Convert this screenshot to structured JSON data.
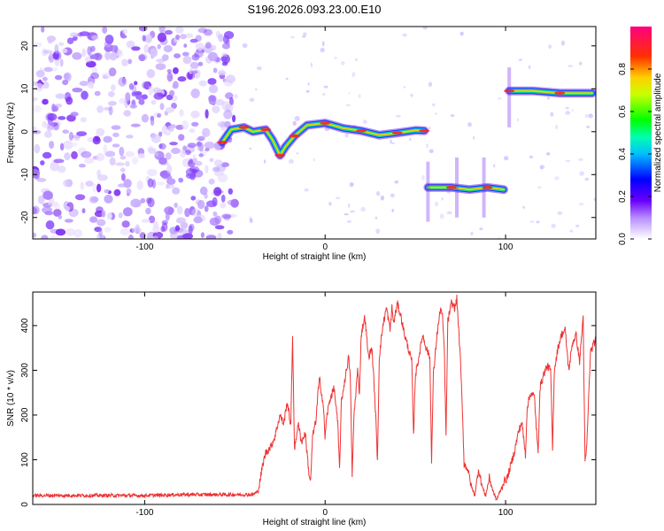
{
  "figure": {
    "title": "S196.2026.093.23.00.E10"
  },
  "chart_data": [
    {
      "type": "heatmap",
      "xlabel": "Height of straight line (km)",
      "ylabel": "Frequency (Hz)",
      "xlim": [
        -162,
        150
      ],
      "ylim": [
        -25,
        24.5
      ],
      "xticks": [
        -100,
        0,
        100
      ],
      "yticks": [
        -20,
        -10,
        0,
        10,
        20
      ],
      "grid": false,
      "noise_region": {
        "x_start": -162,
        "x_end": -50
      },
      "ridge": [
        {
          "x": -57,
          "y": -2.5
        },
        {
          "x": -52,
          "y": 0.5
        },
        {
          "x": -45,
          "y": 1.0
        },
        {
          "x": -40,
          "y": 0.0
        },
        {
          "x": -33,
          "y": 0.5
        },
        {
          "x": -29,
          "y": -2.0
        },
        {
          "x": -25,
          "y": -5.5
        },
        {
          "x": -22,
          "y": -3.5
        },
        {
          "x": -17,
          "y": -1.0
        },
        {
          "x": -10,
          "y": 1.5
        },
        {
          "x": 0,
          "y": 2.0
        },
        {
          "x": 10,
          "y": 0.8
        },
        {
          "x": 20,
          "y": 0.2
        },
        {
          "x": 30,
          "y": -0.8
        },
        {
          "x": 40,
          "y": -0.3
        },
        {
          "x": 50,
          "y": 0.3
        },
        {
          "x": 55,
          "y": 0.2
        },
        {
          "x": 57,
          "y": -13.0
        },
        {
          "x": 70,
          "y": -13.0
        },
        {
          "x": 80,
          "y": -13.5
        },
        {
          "x": 90,
          "y": -13.0
        },
        {
          "x": 99,
          "y": -13.5
        },
        {
          "x": 102,
          "y": 9.5
        },
        {
          "x": 115,
          "y": 9.5
        },
        {
          "x": 130,
          "y": 9.0
        },
        {
          "x": 148,
          "y": 9.0
        }
      ],
      "colorbar": {
        "label": "Normalized spectral amplitude",
        "range": [
          0,
          1
        ],
        "ticks": [
          0.0,
          0.2,
          0.4,
          0.6,
          0.8
        ],
        "colormap": [
          "#ffffff",
          "#7a00ff",
          "#0000ff",
          "#00ffff",
          "#00ff00",
          "#ffff00",
          "#ff0000",
          "#ff00aa"
        ]
      }
    },
    {
      "type": "line",
      "xlabel": "Height of straight line (km)",
      "ylabel": "SNR (10 * v/v)",
      "xlim": [
        -162,
        150
      ],
      "ylim": [
        0,
        475
      ],
      "xticks": [
        -100,
        0,
        100
      ],
      "yticks": [
        0,
        100,
        200,
        300,
        400
      ],
      "grid": false,
      "color": "#ee3333",
      "points": [
        [
          -162,
          20
        ],
        [
          -140,
          20
        ],
        [
          -120,
          20
        ],
        [
          -100,
          20
        ],
        [
          -80,
          22
        ],
        [
          -60,
          22
        ],
        [
          -40,
          22
        ],
        [
          -37,
          30
        ],
        [
          -35,
          80
        ],
        [
          -33,
          115
        ],
        [
          -30,
          130
        ],
        [
          -28,
          150
        ],
        [
          -25,
          200
        ],
        [
          -23,
          180
        ],
        [
          -21,
          230
        ],
        [
          -19,
          175
        ],
        [
          -18,
          380
        ],
        [
          -17,
          120
        ],
        [
          -15,
          180
        ],
        [
          -13,
          140
        ],
        [
          -11,
          160
        ],
        [
          -9,
          70
        ],
        [
          -8,
          50
        ],
        [
          -7,
          150
        ],
        [
          -5,
          190
        ],
        [
          -4,
          250
        ],
        [
          -3,
          280
        ],
        [
          -1,
          220
        ],
        [
          0,
          150
        ],
        [
          1,
          200
        ],
        [
          3,
          240
        ],
        [
          5,
          260
        ],
        [
          7,
          180
        ],
        [
          8,
          80
        ],
        [
          9,
          230
        ],
        [
          11,
          280
        ],
        [
          13,
          330
        ],
        [
          14,
          280
        ],
        [
          15,
          60
        ],
        [
          16,
          200
        ],
        [
          18,
          300
        ],
        [
          19,
          250
        ],
        [
          20,
          380
        ],
        [
          22,
          420
        ],
        [
          24,
          330
        ],
        [
          26,
          350
        ],
        [
          28,
          200
        ],
        [
          29,
          100
        ],
        [
          30,
          330
        ],
        [
          32,
          400
        ],
        [
          34,
          440
        ],
        [
          36,
          390
        ],
        [
          37,
          440
        ],
        [
          38,
          405
        ],
        [
          40,
          450
        ],
        [
          42,
          420
        ],
        [
          44,
          380
        ],
        [
          46,
          350
        ],
        [
          48,
          320
        ],
        [
          49,
          150
        ],
        [
          50,
          290
        ],
        [
          52,
          330
        ],
        [
          54,
          380
        ],
        [
          56,
          350
        ],
        [
          58,
          330
        ],
        [
          59,
          100
        ],
        [
          60,
          290
        ],
        [
          62,
          380
        ],
        [
          64,
          440
        ],
        [
          65,
          420
        ],
        [
          66,
          350
        ],
        [
          67,
          150
        ],
        [
          68,
          410
        ],
        [
          70,
          450
        ],
        [
          72,
          440
        ],
        [
          73,
          460
        ],
        [
          75,
          320
        ],
        [
          76,
          220
        ],
        [
          77,
          90
        ],
        [
          79,
          80
        ],
        [
          81,
          40
        ],
        [
          83,
          20
        ],
        [
          85,
          80
        ],
        [
          87,
          40
        ],
        [
          89,
          20
        ],
        [
          91,
          60
        ],
        [
          93,
          30
        ],
        [
          95,
          10
        ],
        [
          97,
          30
        ],
        [
          99,
          50
        ],
        [
          101,
          60
        ],
        [
          103,
          90
        ],
        [
          105,
          120
        ],
        [
          107,
          160
        ],
        [
          109,
          185
        ],
        [
          111,
          110
        ],
        [
          112,
          220
        ],
        [
          114,
          250
        ],
        [
          116,
          240
        ],
        [
          118,
          110
        ],
        [
          119,
          260
        ],
        [
          121,
          290
        ],
        [
          123,
          310
        ],
        [
          125,
          300
        ],
        [
          126,
          120
        ],
        [
          127,
          300
        ],
        [
          129,
          350
        ],
        [
          131,
          380
        ],
        [
          133,
          390
        ],
        [
          135,
          300
        ],
        [
          137,
          360
        ],
        [
          139,
          380
        ],
        [
          141,
          320
        ],
        [
          143,
          420
        ],
        [
          144,
          90
        ],
        [
          145,
          130
        ],
        [
          147,
          340
        ],
        [
          150,
          370
        ]
      ]
    }
  ]
}
